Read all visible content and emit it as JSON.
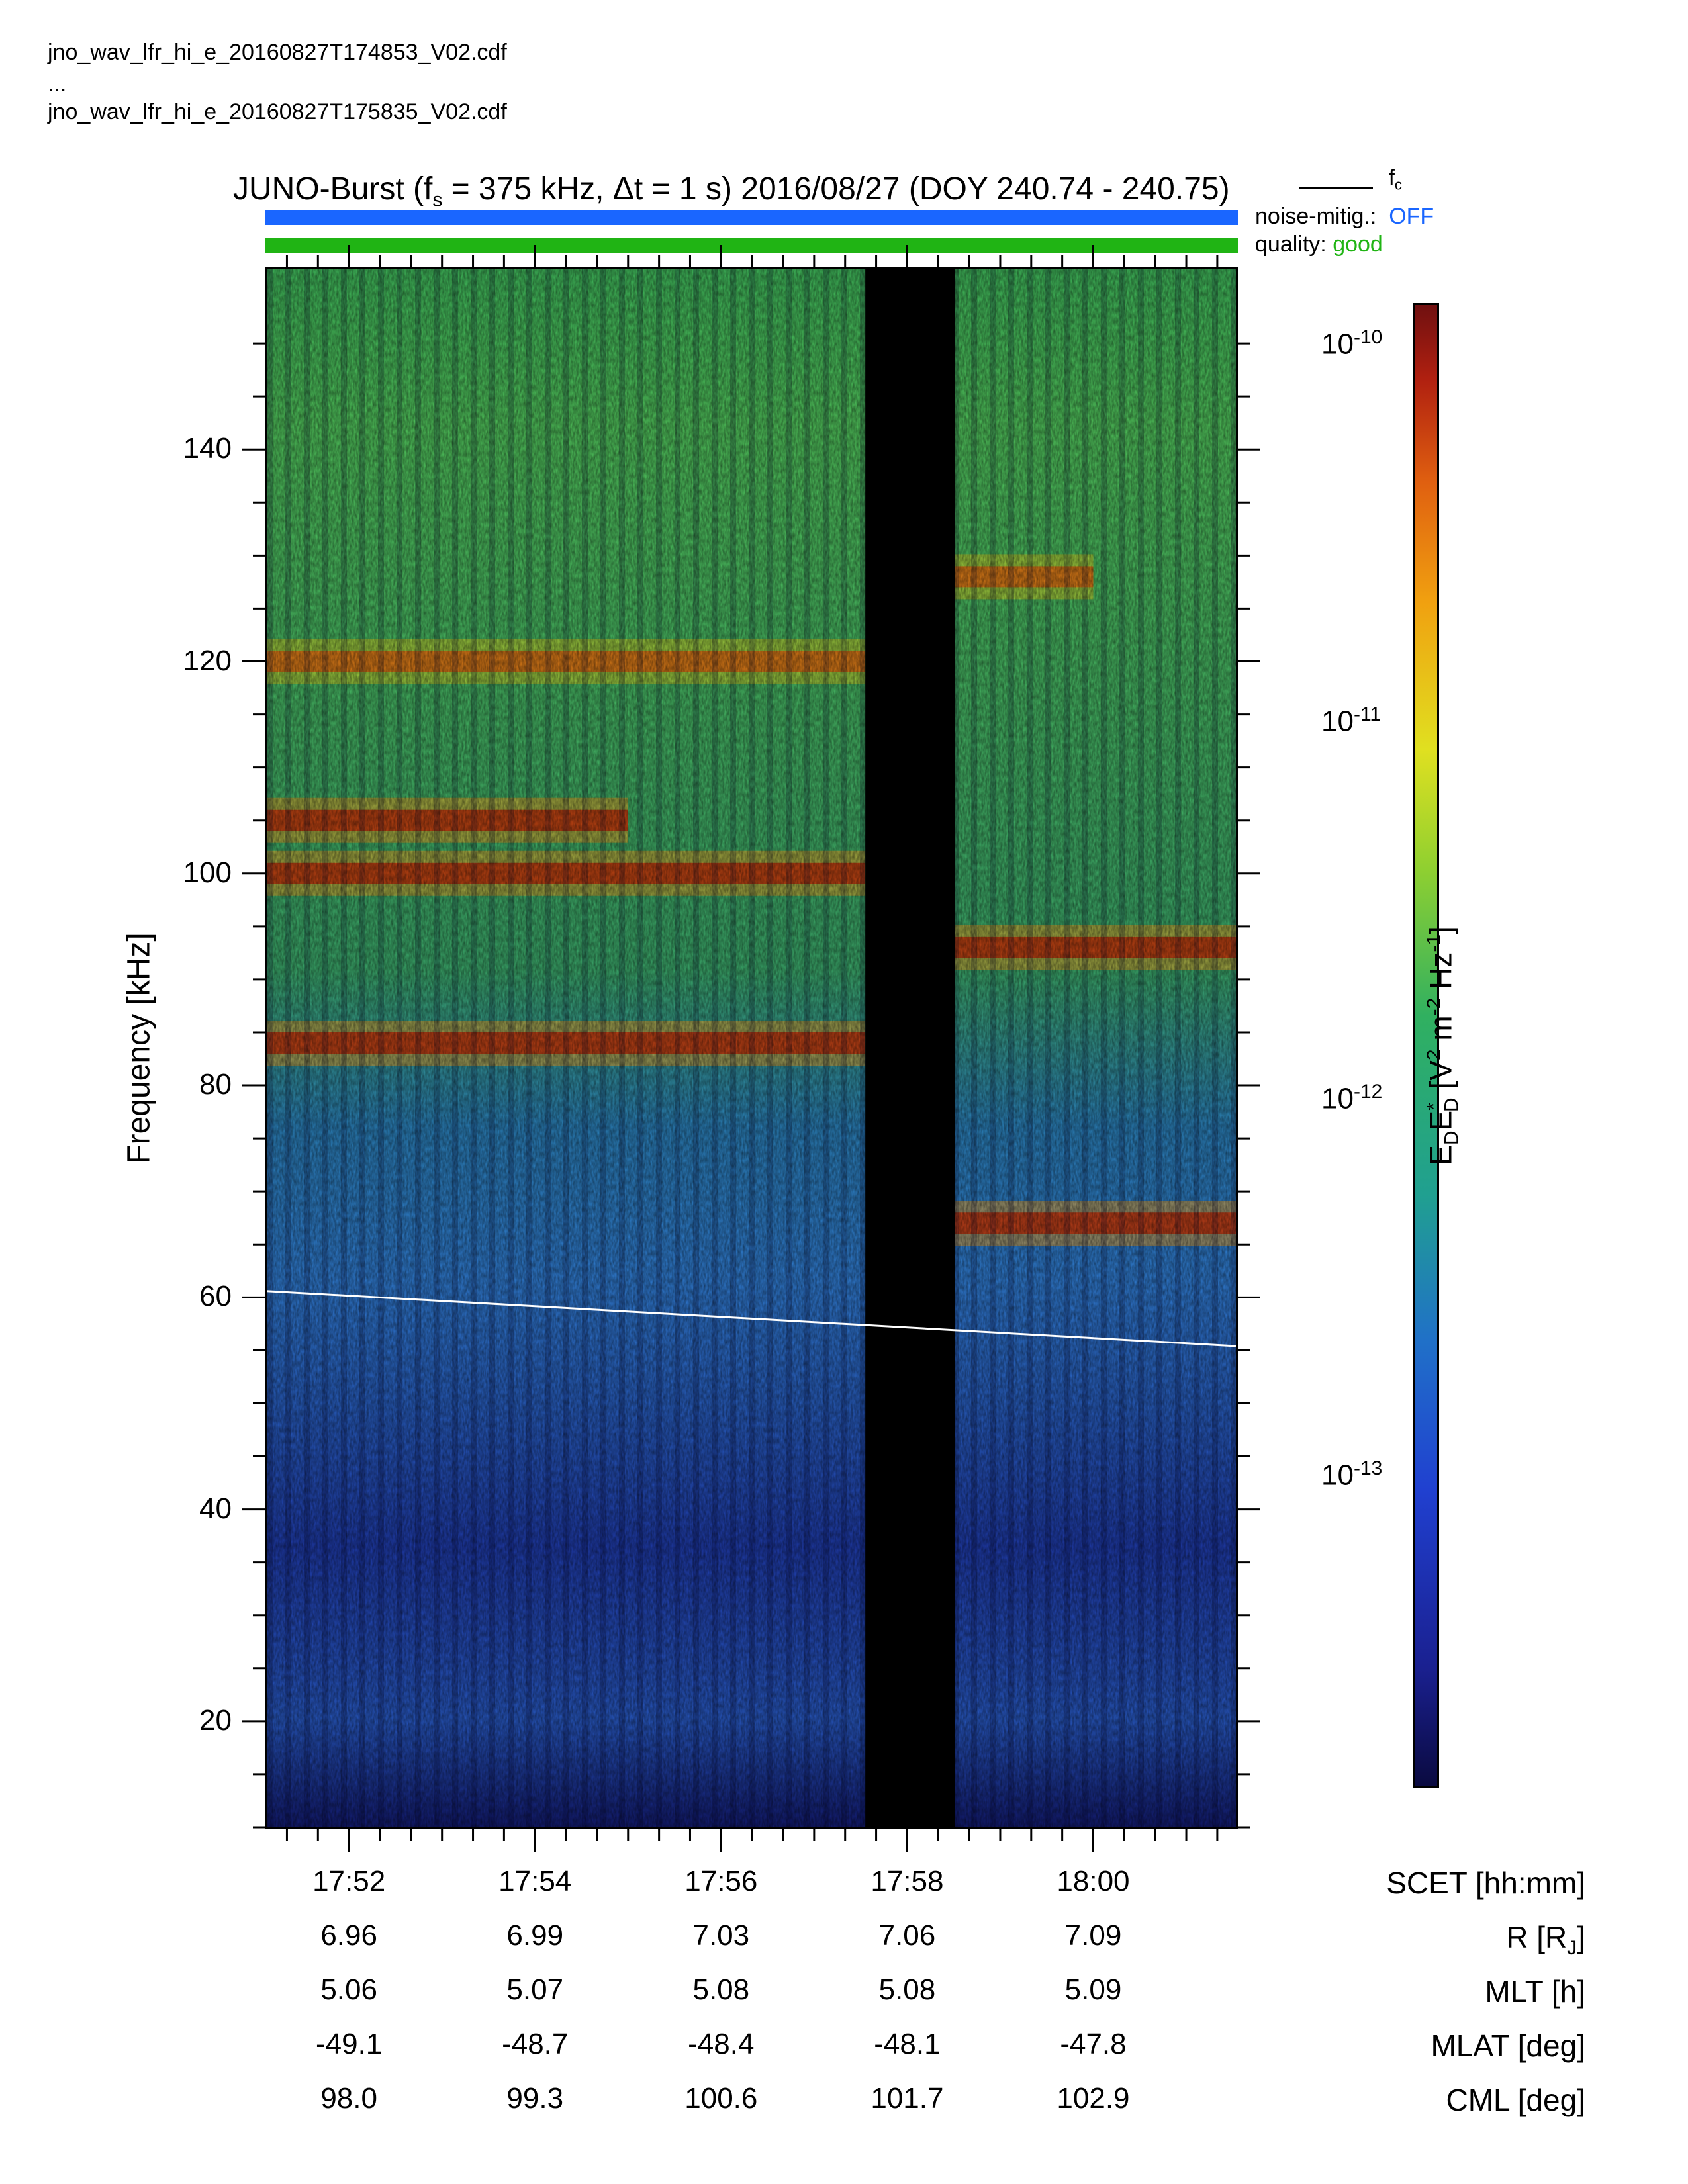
{
  "files": {
    "first": "jno_wav_lfr_hi_e_20160827T174853_V02.cdf",
    "ellipsis": "...",
    "last": "jno_wav_lfr_hi_e_20160827T175835_V02.cdf"
  },
  "header": {
    "title_pre": "JUNO-Burst (f",
    "title_sub": "s",
    "title_post": " = 375 kHz, Δt = 1 s)  2016/08/27 (DOY 240.74 - 240.75)",
    "fc_label": "f",
    "fc_sub": "c",
    "noise_label": "noise-mitig.:",
    "noise_value": "OFF",
    "quality_label": "quality:",
    "quality_value": "good"
  },
  "colors": {
    "noise": "#1a66ff",
    "quality": "#20b414",
    "fc_line": "#ffffff",
    "gap": "#000000"
  },
  "chart_data": {
    "type": "heatmap",
    "title": "JUNO-Burst (fs = 375 kHz, Δt = 1 s)  2016/08/27 (DOY 240.74 - 240.75)",
    "xlabel": "SCET [hh:mm]",
    "ylabel": "Frequency [kHz]",
    "xlim": [
      "17:51:07",
      "18:01:32"
    ],
    "ylim": [
      10,
      157
    ],
    "y_ticks": [
      20,
      40,
      60,
      80,
      100,
      120,
      140
    ],
    "x_ticks": [
      "17:52",
      "17:54",
      "17:56",
      "17:58",
      "18:00"
    ],
    "data_gap": [
      "17:57:33",
      "17:58:31"
    ],
    "colorbar": {
      "label": "E_D E_D* [V² m⁻² Hz⁻¹]",
      "scale": "log",
      "range": [
        1.5e-14,
        1.3e-10
      ],
      "ticks": [
        "10-10",
        "10-11",
        "10-12",
        "10-13"
      ],
      "tick_values": [
        1e-10,
        1e-11,
        1e-12,
        1e-13
      ]
    },
    "fc_line": {
      "name": "fc",
      "x": [
        "17:51:07",
        "18:01:32"
      ],
      "y": [
        60.6,
        55.4
      ]
    },
    "emission_bands": [
      {
        "center_khz": 84,
        "intensity": "high",
        "x": [
          "17:51:07",
          "17:57:33"
        ]
      },
      {
        "center_khz": 100,
        "intensity": "high",
        "x": [
          "17:51:07",
          "17:57:33"
        ]
      },
      {
        "center_khz": 105,
        "intensity": "high",
        "x": [
          "17:51:07",
          "17:55:00"
        ]
      },
      {
        "center_khz": 120,
        "intensity": "medium",
        "x": [
          "17:51:07",
          "17:57:33"
        ]
      },
      {
        "center_khz": 93,
        "intensity": "high",
        "x": [
          "17:58:31",
          "18:01:32"
        ]
      },
      {
        "center_khz": 67,
        "intensity": "high",
        "x": [
          "17:58:31",
          "18:01:32"
        ]
      },
      {
        "center_khz": 128,
        "intensity": "medium",
        "x": [
          "17:58:31",
          "18:00:00"
        ]
      }
    ],
    "ephemeris": [
      {
        "name": "SCET [hh:mm]",
        "sup": "",
        "values": [
          "17:52",
          "17:54",
          "17:56",
          "17:58",
          "18:00"
        ]
      },
      {
        "name": "R [R_J]",
        "values": [
          "6.96",
          "6.99",
          "7.03",
          "7.06",
          "7.09"
        ]
      },
      {
        "name": "MLT [h]",
        "values": [
          "5.06",
          "5.07",
          "5.08",
          "5.08",
          "5.09"
        ]
      },
      {
        "name": "MLAT [deg]",
        "values": [
          "-49.1",
          "-48.7",
          "-48.4",
          "-48.1",
          "-47.8"
        ]
      },
      {
        "name": "CML [deg]",
        "values": [
          "98.0",
          "99.3",
          "100.6",
          "101.7",
          "102.9"
        ]
      }
    ]
  }
}
